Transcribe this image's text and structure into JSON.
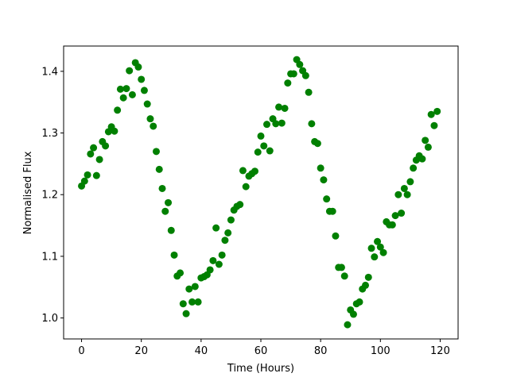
{
  "chart_data": {
    "type": "scatter",
    "xlabel": "Time (Hours)",
    "ylabel": "Normalised Flux",
    "xlim": [
      -6,
      126
    ],
    "ylim": [
      0.966,
      1.441
    ],
    "xticks": [
      0,
      20,
      40,
      60,
      80,
      100,
      120
    ],
    "yticks": [
      1.0,
      1.1,
      1.2,
      1.3,
      1.4
    ],
    "ytick_labels": [
      "1.0",
      "1.1",
      "1.2",
      "1.3",
      "1.4"
    ],
    "grid": false,
    "marker_color": "#008000",
    "series": [
      {
        "points": [
          [
            0,
            1.214
          ],
          [
            1,
            1.222
          ],
          [
            2,
            1.232
          ],
          [
            3,
            1.266
          ],
          [
            4,
            1.276
          ],
          [
            5,
            1.231
          ],
          [
            6,
            1.257
          ],
          [
            7,
            1.286
          ],
          [
            8,
            1.279
          ],
          [
            9,
            1.302
          ],
          [
            10,
            1.31
          ],
          [
            11,
            1.303
          ],
          [
            12,
            1.337
          ],
          [
            13,
            1.371
          ],
          [
            14,
            1.357
          ],
          [
            15,
            1.372
          ],
          [
            16,
            1.401
          ],
          [
            17,
            1.362
          ],
          [
            18,
            1.414
          ],
          [
            19,
            1.407
          ],
          [
            20,
            1.387
          ],
          [
            21,
            1.369
          ],
          [
            22,
            1.347
          ],
          [
            23,
            1.323
          ],
          [
            24,
            1.311
          ],
          [
            25,
            1.27
          ],
          [
            26,
            1.241
          ],
          [
            27,
            1.21
          ],
          [
            28,
            1.173
          ],
          [
            29,
            1.187
          ],
          [
            30,
            1.142
          ],
          [
            31,
            1.102
          ],
          [
            32,
            1.068
          ],
          [
            33,
            1.073
          ],
          [
            34,
            1.023
          ],
          [
            35,
            1.007
          ],
          [
            36,
            1.047
          ],
          [
            37,
            1.026
          ],
          [
            38,
            1.051
          ],
          [
            39,
            1.026
          ],
          [
            40,
            1.065
          ],
          [
            41,
            1.067
          ],
          [
            42,
            1.07
          ],
          [
            43,
            1.078
          ],
          [
            44,
            1.093
          ],
          [
            45,
            1.146
          ],
          [
            46,
            1.087
          ],
          [
            47,
            1.102
          ],
          [
            48,
            1.126
          ],
          [
            49,
            1.138
          ],
          [
            50,
            1.159
          ],
          [
            51,
            1.175
          ],
          [
            52,
            1.181
          ],
          [
            53,
            1.184
          ],
          [
            54,
            1.239
          ],
          [
            55,
            1.213
          ],
          [
            56,
            1.23
          ],
          [
            57,
            1.234
          ],
          [
            58,
            1.238
          ],
          [
            59,
            1.269
          ],
          [
            60,
            1.295
          ],
          [
            61,
            1.279
          ],
          [
            62,
            1.314
          ],
          [
            63,
            1.271
          ],
          [
            64,
            1.323
          ],
          [
            65,
            1.315
          ],
          [
            66,
            1.342
          ],
          [
            67,
            1.316
          ],
          [
            68,
            1.34
          ],
          [
            69,
            1.381
          ],
          [
            70,
            1.396
          ],
          [
            71,
            1.396
          ],
          [
            72,
            1.419
          ],
          [
            73,
            1.411
          ],
          [
            74,
            1.401
          ],
          [
            75,
            1.393
          ],
          [
            76,
            1.366
          ],
          [
            77,
            1.315
          ],
          [
            78,
            1.286
          ],
          [
            79,
            1.283
          ],
          [
            80,
            1.243
          ],
          [
            81,
            1.224
          ],
          [
            82,
            1.193
          ],
          [
            83,
            1.173
          ],
          [
            84,
            1.173
          ],
          [
            85,
            1.133
          ],
          [
            86,
            1.082
          ],
          [
            87,
            1.082
          ],
          [
            88,
            1.068
          ],
          [
            89,
            0.989
          ],
          [
            90,
            1.013
          ],
          [
            91,
            1.006
          ],
          [
            92,
            1.023
          ],
          [
            93,
            1.026
          ],
          [
            94,
            1.047
          ],
          [
            95,
            1.053
          ],
          [
            96,
            1.066
          ],
          [
            97,
            1.113
          ],
          [
            98,
            1.099
          ],
          [
            99,
            1.124
          ],
          [
            100,
            1.115
          ],
          [
            101,
            1.106
          ],
          [
            102,
            1.156
          ],
          [
            103,
            1.151
          ],
          [
            104,
            1.151
          ],
          [
            105,
            1.166
          ],
          [
            106,
            1.2
          ],
          [
            107,
            1.17
          ],
          [
            108,
            1.21
          ],
          [
            109,
            1.2
          ],
          [
            110,
            1.221
          ],
          [
            111,
            1.243
          ],
          [
            112,
            1.256
          ],
          [
            113,
            1.263
          ],
          [
            114,
            1.258
          ],
          [
            115,
            1.288
          ],
          [
            116,
            1.277
          ],
          [
            117,
            1.33
          ],
          [
            118,
            1.312
          ],
          [
            119,
            1.335
          ]
        ]
      }
    ]
  }
}
